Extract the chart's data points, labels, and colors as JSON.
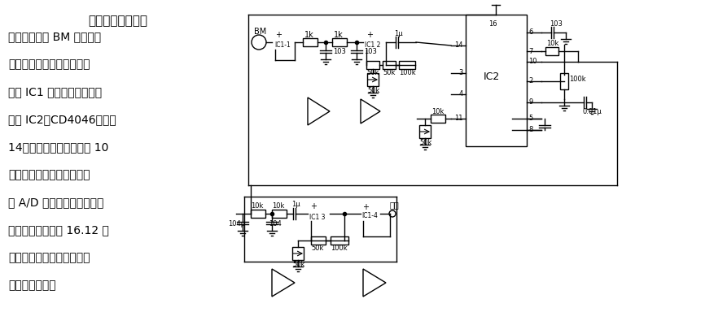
{
  "bg_color": "#ffffff",
  "text_color": "#000000",
  "title_text": "心电信号解调电路",
  "body_lines": [
    "电路的拾音器 BM 将由电话",
    "传送的调制心电信号送入放",
    "大器 IC1 放大并滤波后，再",
    "加到 IC2（CD4046）的脚",
    "14，经解调、鉴相后由脚 10",
    "输出，再经滤波、放大后送",
    "到 A/D 变换器及微机进行分",
    "析处理。此电路与 16.12 的",
    "电路相配合，可实现远距离",
    "心电信号监护。"
  ],
  "title_fontsize": 11,
  "body_fontsize": 10
}
